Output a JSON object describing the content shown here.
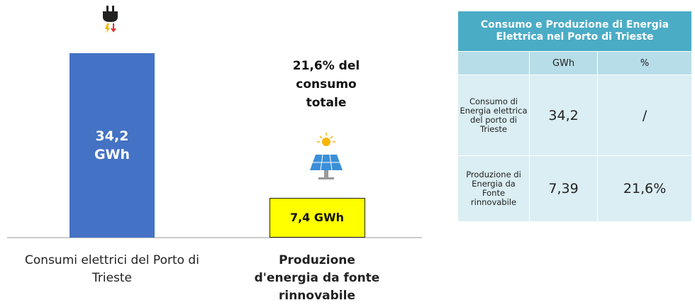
{
  "chart_data": {
    "type": "bar",
    "categories": [
      "Consumi elettrici del Porto di Trieste",
      "Produzione d'energia da fonte rinnovabile"
    ],
    "values": [
      34.2,
      7.4
    ],
    "value_labels": [
      "34,2 GWh",
      "7,4 GWh"
    ],
    "colors": [
      "#4472c4",
      "#ffff00"
    ],
    "annotation": "21,6% del consumo totale"
  },
  "table": {
    "title": "Consumo e Produzione di Energia Elettrica nel Porto di Trieste",
    "columns": [
      "GWh",
      "%"
    ],
    "rows": [
      [
        "Consumo di Energia elettrica del porto di Trieste",
        "34,2",
        "/"
      ],
      [
        "Produzione di Energia da Fonte rinnovabile",
        "7,39",
        "21,6%"
      ]
    ]
  }
}
